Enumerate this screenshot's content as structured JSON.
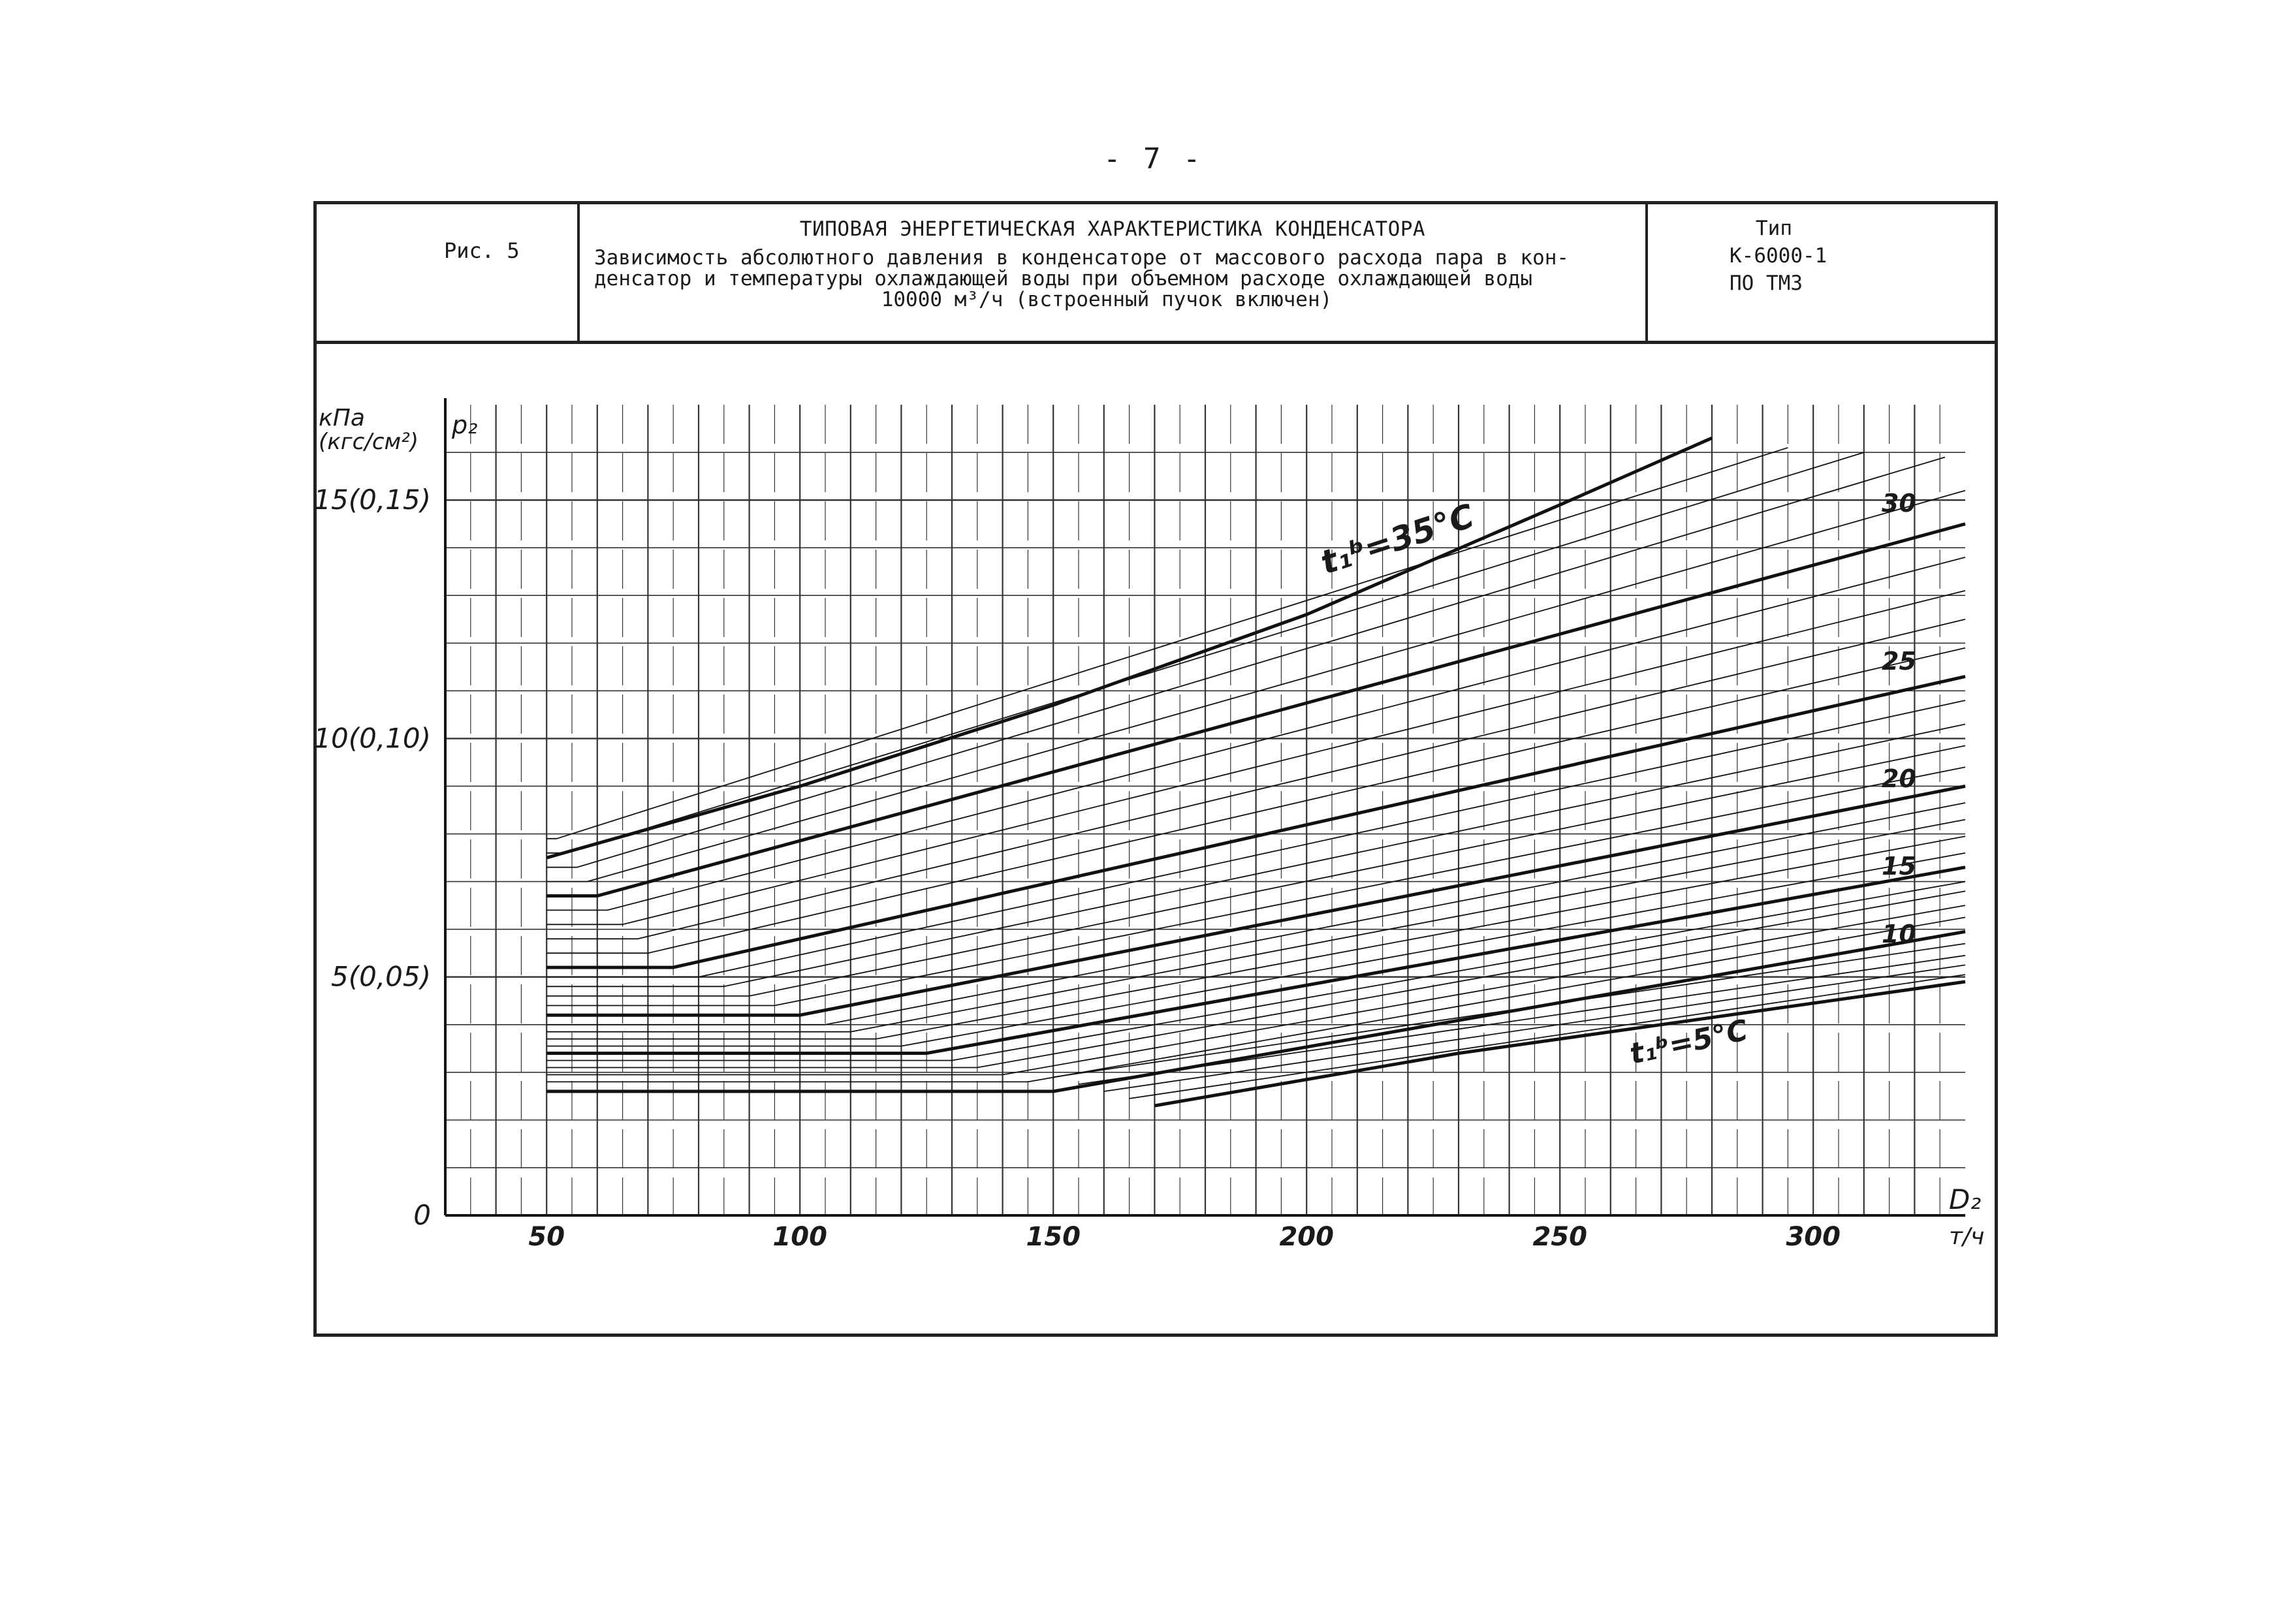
{
  "page_number": "- 7 -",
  "title_block": {
    "figure_label": "Рис. 5",
    "title": "ТИПОВАЯ ЭНЕРГЕТИЧЕСКАЯ ХАРАКТЕРИСТИКА КОНДЕНСАТОРА",
    "description_lines": [
      "Зависимость абсолютного давления в конденсаторе от массового расхода пара в кон-",
      "денсатор и температуры охлаждающей воды при объемном расходе охлаждающей воды",
      "10000 м³/ч (встроенный пучок включен)"
    ],
    "type_lines": [
      "Тип",
      "К-6000-1",
      "ПО ТМЗ"
    ]
  },
  "chart_data": {
    "type": "line",
    "title": "",
    "xlabel": "D₂",
    "xunit": "т/ч",
    "ylabel": "p₂",
    "yunit_lines": [
      "кПа",
      "(кгс/см²)"
    ],
    "xlim": [
      30,
      330
    ],
    "ylim": [
      0,
      17
    ],
    "x_ticks": [
      50,
      100,
      150,
      200,
      250,
      300
    ],
    "y_ticks": [
      0,
      5,
      10,
      15
    ],
    "y_tick_labels": [
      "0",
      "5(0,05)",
      "10(0,10)",
      "15(0,15)"
    ],
    "grid": true,
    "x_grid_minor": true,
    "curve_labels": {
      "top": "t₁ᵇ=35°C",
      "bottom": "t₁ᵇ=5°C",
      "right": [
        "30",
        "25",
        "20",
        "15",
        "10"
      ]
    },
    "series": [
      {
        "t": 5,
        "x": [
          170,
          230,
          330
        ],
        "y": [
          2.3,
          3.4,
          4.9
        ]
      },
      {
        "t": 6,
        "x": [
          165,
          330
        ],
        "y": [
          2.45,
          5.05
        ]
      },
      {
        "t": 7,
        "x": [
          160,
          330
        ],
        "y": [
          2.6,
          5.25
        ]
      },
      {
        "t": 8,
        "x": [
          155,
          330
        ],
        "y": [
          2.75,
          5.45
        ]
      },
      {
        "t": 9,
        "x": [
          150,
          330
        ],
        "y": [
          2.9,
          5.7
        ]
      },
      {
        "t": 10,
        "x": [
          50,
          150,
          330
        ],
        "y": [
          2.6,
          2.6,
          5.95
        ]
      },
      {
        "t": 11,
        "x": [
          50,
          145,
          330
        ],
        "y": [
          2.8,
          2.8,
          6.25
        ]
      },
      {
        "t": 12,
        "x": [
          50,
          140,
          330
        ],
        "y": [
          2.95,
          2.95,
          6.5
        ]
      },
      {
        "t": 13,
        "x": [
          50,
          135,
          330
        ],
        "y": [
          3.1,
          3.1,
          6.8
        ]
      },
      {
        "t": 14,
        "x": [
          50,
          130,
          330
        ],
        "y": [
          3.25,
          3.25,
          7.0
        ]
      },
      {
        "t": 15,
        "x": [
          50,
          125,
          330
        ],
        "y": [
          3.4,
          3.4,
          7.3
        ]
      },
      {
        "t": 16,
        "x": [
          50,
          120,
          330
        ],
        "y": [
          3.55,
          3.55,
          7.6
        ]
      },
      {
        "t": 17,
        "x": [
          50,
          115,
          330
        ],
        "y": [
          3.7,
          3.7,
          7.95
        ]
      },
      {
        "t": 18,
        "x": [
          50,
          110,
          330
        ],
        "y": [
          3.85,
          3.85,
          8.3
        ]
      },
      {
        "t": 19,
        "x": [
          50,
          105,
          330
        ],
        "y": [
          4.0,
          4.0,
          8.65
        ]
      },
      {
        "t": 20,
        "x": [
          50,
          100,
          330
        ],
        "y": [
          4.2,
          4.2,
          9.0
        ]
      },
      {
        "t": 21,
        "x": [
          50,
          95,
          330
        ],
        "y": [
          4.4,
          4.4,
          9.4
        ]
      },
      {
        "t": 22,
        "x": [
          50,
          90,
          330
        ],
        "y": [
          4.6,
          4.6,
          9.85
        ]
      },
      {
        "t": 23,
        "x": [
          50,
          85,
          330
        ],
        "y": [
          4.8,
          4.8,
          10.3
        ]
      },
      {
        "t": 24,
        "x": [
          50,
          80,
          330
        ],
        "y": [
          5.0,
          5.0,
          10.8
        ]
      },
      {
        "t": 25,
        "x": [
          50,
          75,
          330
        ],
        "y": [
          5.2,
          5.2,
          11.3
        ]
      },
      {
        "t": 26,
        "x": [
          50,
          70,
          330
        ],
        "y": [
          5.5,
          5.5,
          11.9
        ]
      },
      {
        "t": 27,
        "x": [
          50,
          68,
          330
        ],
        "y": [
          5.8,
          5.8,
          12.5
        ]
      },
      {
        "t": 28,
        "x": [
          50,
          65,
          330
        ],
        "y": [
          6.1,
          6.1,
          13.1
        ]
      },
      {
        "t": 29,
        "x": [
          50,
          62,
          330
        ],
        "y": [
          6.4,
          6.4,
          13.8
        ]
      },
      {
        "t": 30,
        "x": [
          50,
          60,
          330
        ],
        "y": [
          6.7,
          6.7,
          14.5
        ]
      },
      {
        "t": 31,
        "x": [
          50,
          58,
          330
        ],
        "y": [
          7.0,
          7.0,
          15.2
        ]
      },
      {
        "t": 32,
        "x": [
          50,
          56,
          326
        ],
        "y": [
          7.3,
          7.3,
          15.9
        ]
      },
      {
        "t": 33,
        "x": [
          50,
          54,
          310
        ],
        "y": [
          7.6,
          7.6,
          16.0
        ]
      },
      {
        "t": 34,
        "x": [
          50,
          52,
          295
        ],
        "y": [
          7.9,
          7.9,
          16.1
        ]
      },
      {
        "t": 35,
        "x": [
          50,
          100,
          150,
          200,
          250,
          280
        ],
        "y": [
          7.5,
          9.0,
          10.7,
          12.6,
          14.9,
          16.3
        ]
      }
    ]
  }
}
